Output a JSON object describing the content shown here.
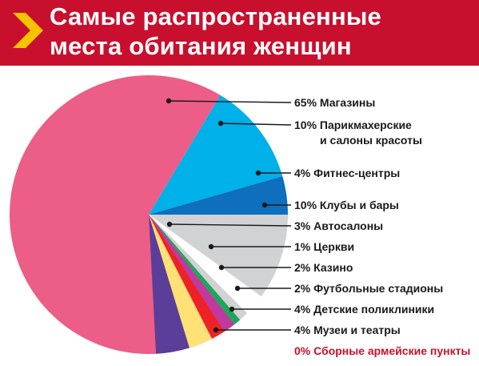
{
  "header": {
    "title_line1": "Самые распространенные",
    "title_line2": "места обитания женщин",
    "accent_icon": "chevron-right-icon",
    "background": "#c8102e"
  },
  "chart_data": {
    "type": "pie",
    "title": "Самые распространенные места обитания женщин",
    "unit": "%",
    "slices": [
      {
        "label": "Магазины",
        "value": 65,
        "color": "#ec5d87",
        "display": "65% Магазины"
      },
      {
        "label": "Парикмахерские и салоны красоты",
        "value": 10,
        "color": "#00b0e8",
        "display_line1": "10% Парикмахерские",
        "display_line2": "и салоны красоты"
      },
      {
        "label": "Фитнес-центры",
        "value": 4,
        "color": "#0d6fbd",
        "display": "4% Фитнес-центры"
      },
      {
        "label": "Клубы и бары",
        "value": 10,
        "color": "#d1d2d4",
        "display": "10% Клубы и бары"
      },
      {
        "label": "Автосалоны",
        "value": 3,
        "color": "#ffffff",
        "display": "3% Автосалоны"
      },
      {
        "label": "Церкви",
        "value": 1,
        "color": "#d1d2d4",
        "display": "1% Церкви"
      },
      {
        "label": "Казино",
        "value": 2,
        "color": "#1fa65a",
        "display": "2% Казино"
      },
      {
        "label": "Футбольные стадионы",
        "value": 2,
        "color": "#c0399f",
        "display": "2% Футбольные стадионы"
      },
      {
        "label": "Детские поликлиники",
        "value": 4,
        "color": "#ed2227",
        "display": "4% Детские поликлиники"
      },
      {
        "label": "Музеи и театры",
        "value": 4,
        "color": "#ffe176",
        "display": "4% Музеи и театры"
      },
      {
        "label": "Сборные армейские пункты",
        "value": 0,
        "color": "#c8102e",
        "display": "0% Сборные армейские пункты",
        "highlight": true
      }
    ],
    "extra_slice": {
      "color": "#5a3e9a"
    },
    "legend_placement": "right"
  }
}
